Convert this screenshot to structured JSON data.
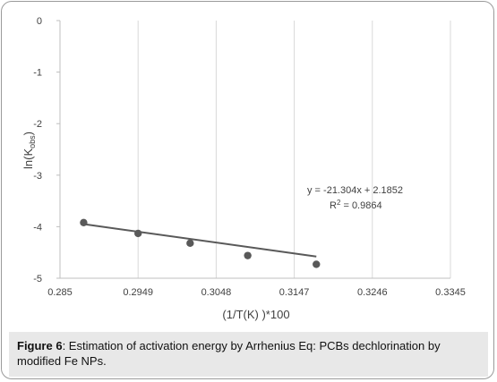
{
  "chart_data": {
    "type": "scatter",
    "x": [
      0.288,
      0.2949,
      0.3015,
      0.3088,
      0.3175
    ],
    "y": [
      -3.92,
      -4.13,
      -4.32,
      -4.56,
      -4.73
    ],
    "trendline": {
      "type": "linear",
      "slope": -21.304,
      "intercept": 2.1852
    },
    "equation_text": "y = -21.304x + 2.1852",
    "r2_prefix": "R",
    "r2_sup": "2",
    "r2_value": " = 0.9864",
    "xlabel": "(1/T(K) )*100",
    "ylabel_main": "ln(K",
    "ylabel_sub": "obs",
    "ylabel_end": ")",
    "xlim": [
      0.285,
      0.3345
    ],
    "ylim": [
      -5,
      0
    ],
    "x_ticks": [
      "0.285",
      "0.2949",
      "0.3048",
      "0.3147",
      "0.3246",
      "0.3345"
    ],
    "y_ticks": [
      "0",
      "-1",
      "-2",
      "-3",
      "-4",
      "-5"
    ],
    "grid": "vertical",
    "marker_color": "#595959",
    "line_color": "#595959",
    "grid_color": "#d9d9d9"
  },
  "caption": {
    "label": "Figure 6",
    "text": ": Estimation of activation energy by Arrhenius Eq: PCBs dechlorination by modified Fe NPs."
  }
}
